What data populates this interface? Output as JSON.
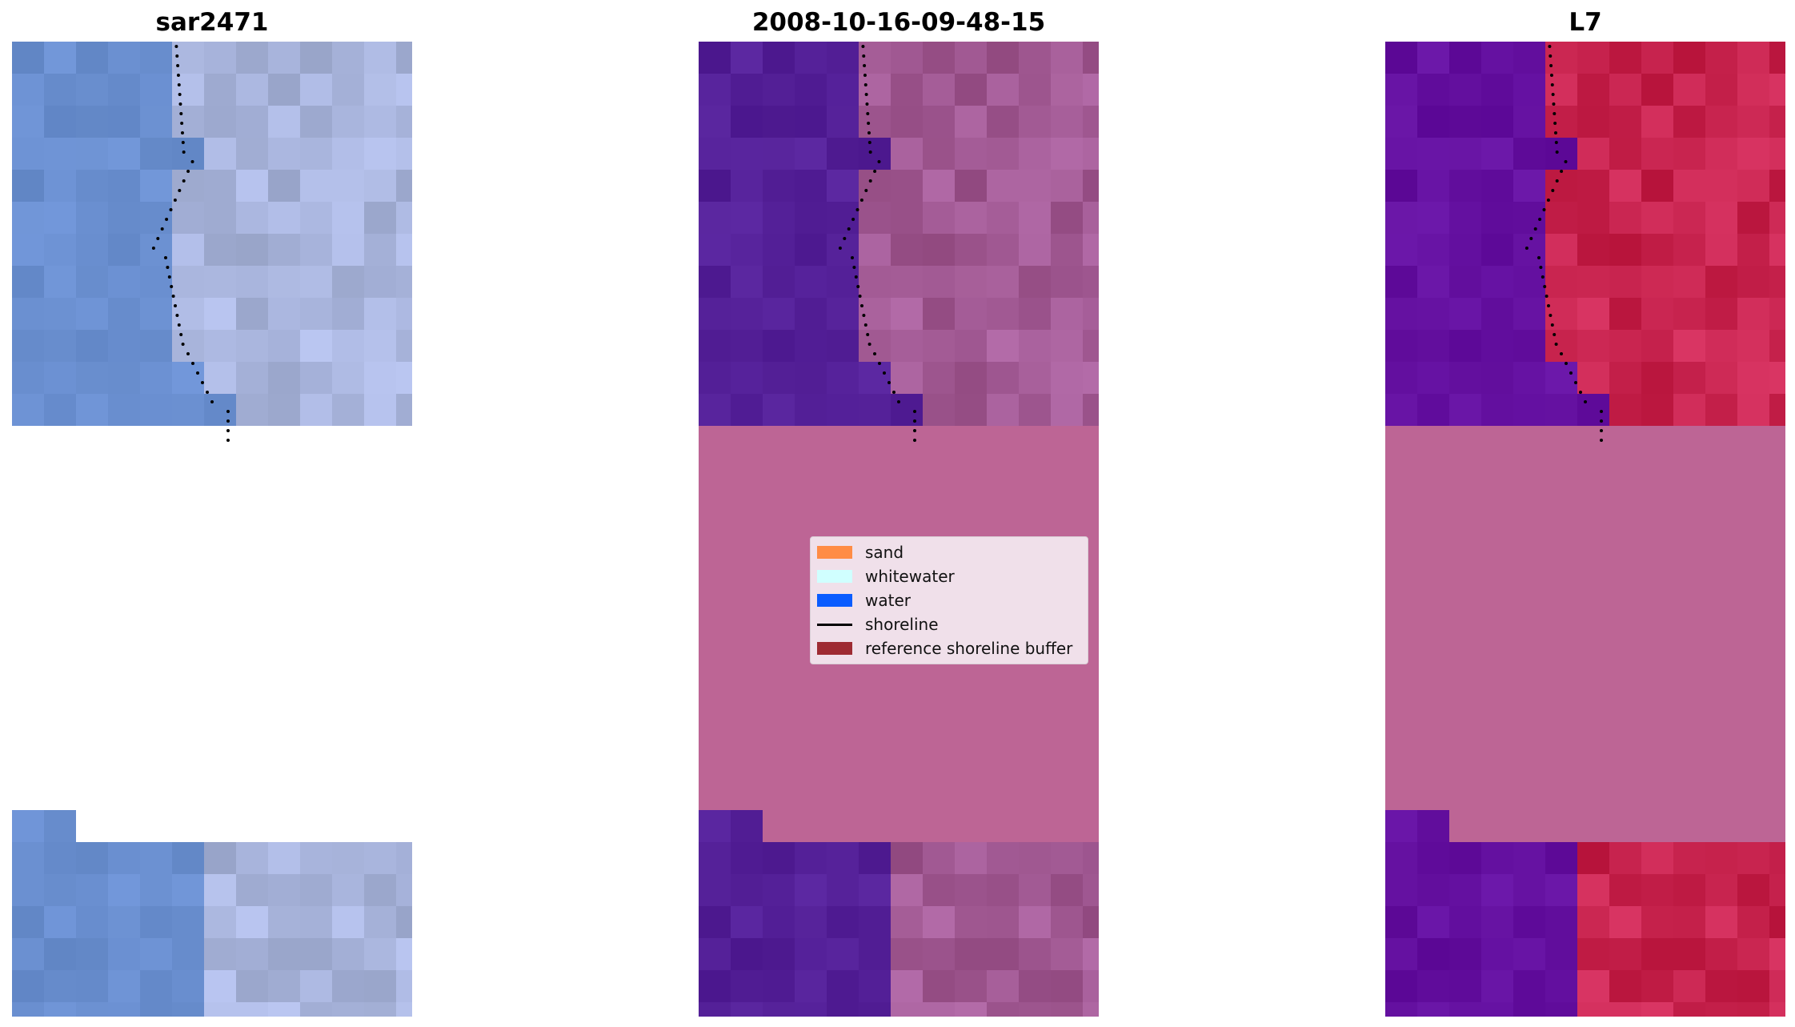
{
  "panels": [
    {
      "title": "sar2471"
    },
    {
      "title": "2008-10-16-09-48-15"
    },
    {
      "title": "L7"
    }
  ],
  "legend": {
    "items": [
      {
        "label": "sand",
        "color": "#ff8c45",
        "kind": "patch"
      },
      {
        "label": "whitewater",
        "color": "#d0ffff",
        "kind": "patch"
      },
      {
        "label": "water",
        "color": "#0a5cff",
        "kind": "patch"
      },
      {
        "label": "shoreline",
        "color": "#000000",
        "kind": "line"
      },
      {
        "label": "reference shoreline buffer",
        "color": "#9e2b33",
        "kind": "patch"
      }
    ]
  },
  "colors": {
    "rgb_water": "#6a8fd0",
    "rgb_land": "#a9b5dd",
    "class_water": "#542098",
    "class_buffer": "#bd6595",
    "class_land": "#a25a94",
    "index_water": "#6410a0",
    "index_land": "#c8244f",
    "shoreline": "#000000"
  }
}
